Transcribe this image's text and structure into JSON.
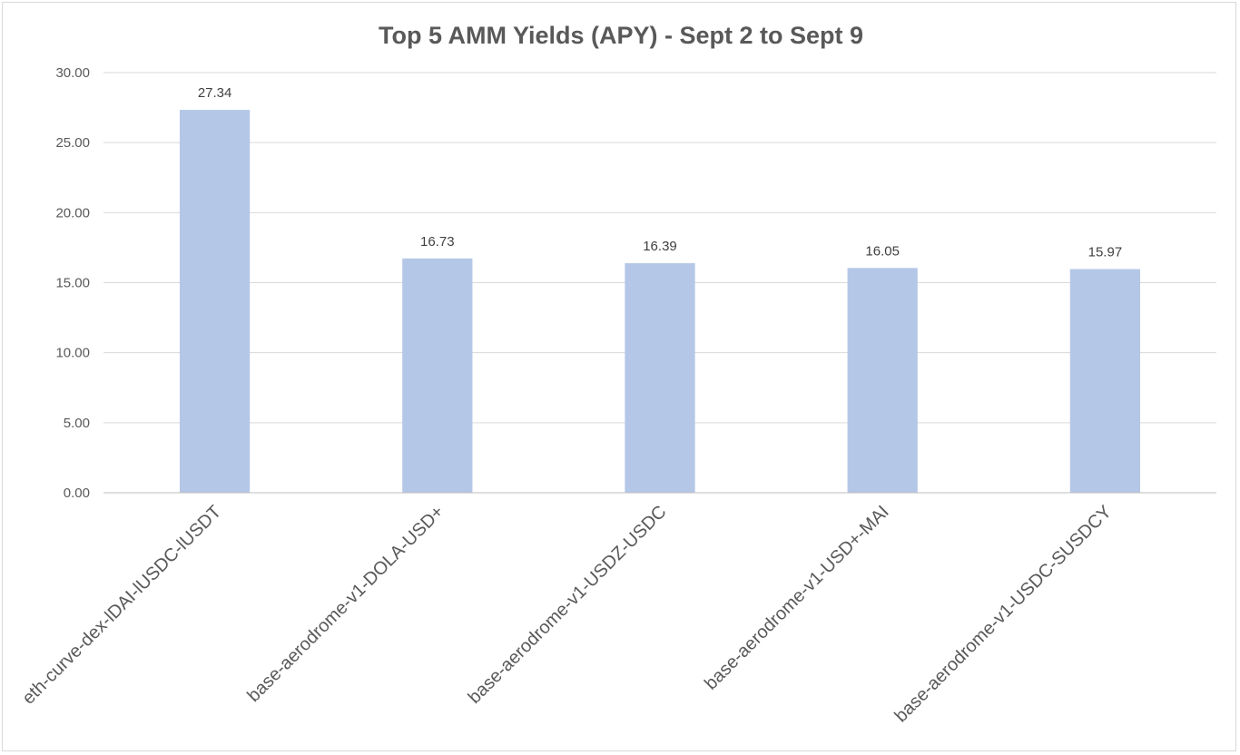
{
  "chart_data": {
    "type": "bar",
    "title": "Top 5 AMM Yields (APY) - Sept 2 to Sept 9",
    "xlabel": "",
    "ylabel": "",
    "categories": [
      "eth-curve-dex-lDAI-lUSDC-lUSDT",
      "base-aerodrome-v1-DOLA-USD+",
      "base-aerodrome-v1-USDZ-USDC",
      "base-aerodrome-v1-USD+-MAI",
      "base-aerodrome-v1-USDC-SUSDCY"
    ],
    "values": [
      27.34,
      16.73,
      16.39,
      16.05,
      15.97
    ],
    "value_labels": [
      "27.34",
      "16.73",
      "16.39",
      "16.05",
      "15.97"
    ],
    "ylim": [
      0,
      30
    ],
    "y_ticks": [
      "0.00",
      "5.00",
      "10.00",
      "15.00",
      "20.00",
      "25.00",
      "30.00"
    ],
    "y_tick_values": [
      0,
      5,
      10,
      15,
      20,
      25,
      30
    ],
    "grid": true,
    "legend": "none",
    "bar_color": "#b4c7e7"
  }
}
